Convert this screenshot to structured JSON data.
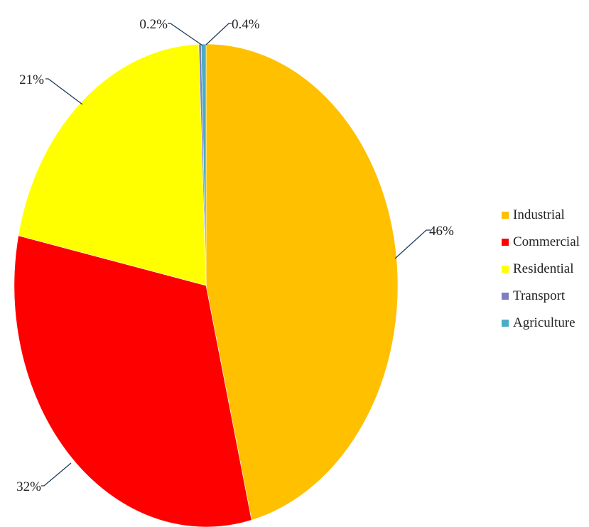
{
  "chart_data": {
    "type": "pie",
    "title": "",
    "series": [
      {
        "name": "Industrial",
        "value": 46,
        "label": "46%",
        "color": "#FFC000"
      },
      {
        "name": "Commercial",
        "value": 32,
        "label": "32%",
        "color": "#FF0000"
      },
      {
        "name": "Residential",
        "value": 21,
        "label": "21%",
        "color": "#FFFF00"
      },
      {
        "name": "Transport",
        "value": 0.2,
        "label": "0.2%",
        "color": "#7F7FBF"
      },
      {
        "name": "Agriculture",
        "value": 0.4,
        "label": "0.4%",
        "color": "#4BACC6"
      }
    ],
    "legend_position": "right"
  }
}
